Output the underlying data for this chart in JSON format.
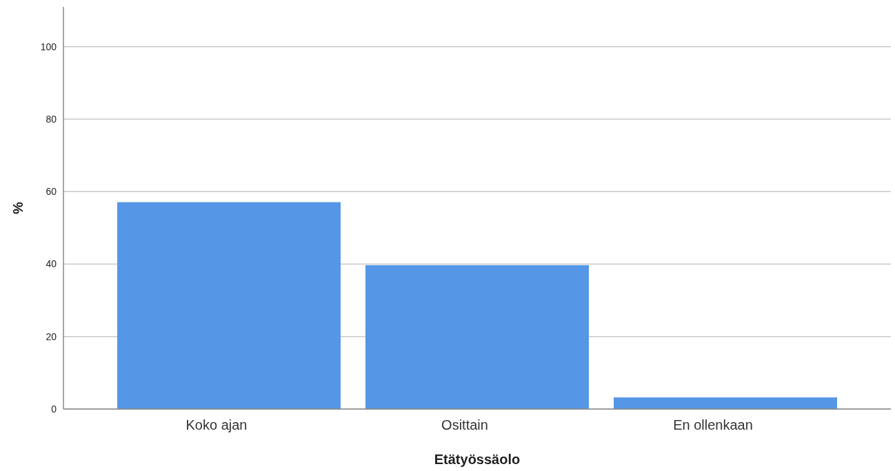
{
  "chart_data": {
    "type": "bar",
    "xlabel": "Etätyössäolo",
    "ylabel": "%",
    "categories": [
      "Koko ajan",
      "Osittain",
      "En ollenkaan"
    ],
    "values": [
      57.1,
      39.7,
      3.2
    ],
    "color": "#5596e6",
    "ylim": [
      0,
      111
    ],
    "yticks": [
      0,
      20,
      40,
      60,
      80,
      100
    ],
    "grid": "y"
  }
}
